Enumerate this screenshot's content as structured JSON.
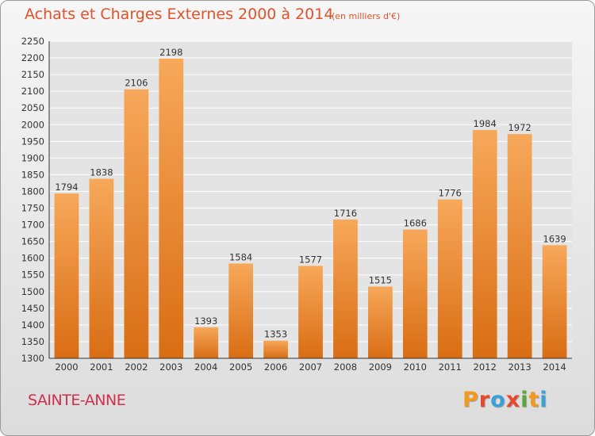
{
  "header": {
    "title": "Achats et Charges Externes 2000 à 2014",
    "unit": "(en milliers d'€)"
  },
  "footer": {
    "place": "SAINTE-ANNE",
    "logo": "Proxiti",
    "logo_colors": [
      "#f39a1e",
      "#e8482b",
      "#3aa0d8",
      "#e8482b",
      "#5aa83a",
      "#f39a1e",
      "#3aa0d8"
    ]
  },
  "colors": {
    "bar_top": "#f7a85a",
    "bar_bottom": "#d96d14",
    "axis": "#333333",
    "grid": "#ffffff"
  },
  "chart_data": {
    "type": "bar",
    "title": "Achats et Charges Externes 2000 à 2014",
    "subtitle": "(en milliers d'€)",
    "categories": [
      "2000",
      "2001",
      "2002",
      "2003",
      "2004",
      "2005",
      "2006",
      "2007",
      "2008",
      "2009",
      "2010",
      "2011",
      "2012",
      "2013",
      "2014"
    ],
    "values": [
      1794,
      1838,
      2106,
      2198,
      1393,
      1584,
      1353,
      1577,
      1716,
      1515,
      1686,
      1776,
      1984,
      1972,
      1639
    ],
    "ylim": [
      1300,
      2250
    ],
    "yticks": [
      1300,
      1350,
      1400,
      1450,
      1500,
      1550,
      1600,
      1650,
      1700,
      1750,
      1800,
      1850,
      1900,
      1950,
      2000,
      2050,
      2100,
      2150,
      2200,
      2250
    ],
    "grid": true,
    "xlabel": "",
    "ylabel": ""
  }
}
